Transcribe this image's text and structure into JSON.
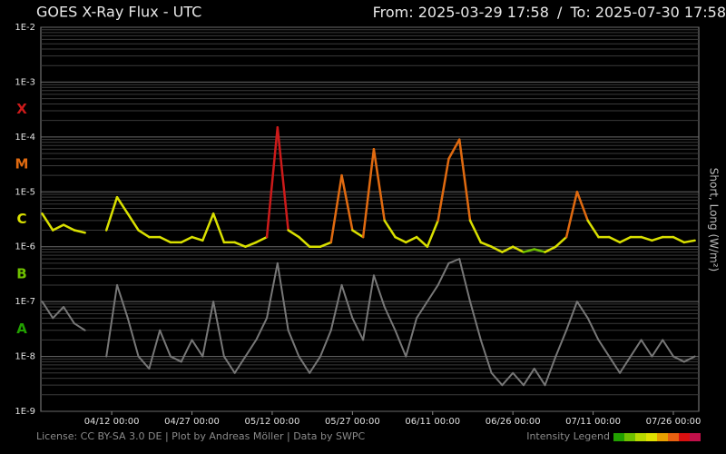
{
  "chart_data": {
    "type": "line",
    "title": "GOES X-Ray Flux - UTC",
    "header": {
      "from_label": "From:",
      "separator": "/",
      "to_label": "To:"
    },
    "ylabel": "Short, Long (W/m²)",
    "footer": "License: CC BY-SA 3.0 DE | Plot by Andreas Möller | Data by SWPC",
    "intensity_legend": {
      "label": "Intensity Legend",
      "colors": [
        "#22a000",
        "#6fc000",
        "#b8d800",
        "#e0e000",
        "#e8a000",
        "#e86010",
        "#d81010",
        "#c0104a"
      ]
    },
    "log_scale": true,
    "grid": true,
    "minor_grid": true,
    "xlim": [
      "2025-03-29 17:58",
      "2025-07-30 17:58"
    ],
    "xticks": [
      {
        "value": "2025-04-12 00:00",
        "label": "04/12 00:00"
      },
      {
        "value": "2025-04-27 00:00",
        "label": "04/27 00:00"
      },
      {
        "value": "2025-05-12 00:00",
        "label": "05/12 00:00"
      },
      {
        "value": "2025-05-27 00:00",
        "label": "05/27 00:00"
      },
      {
        "value": "2025-06-11 00:00",
        "label": "06/11 00:00"
      },
      {
        "value": "2025-06-26 00:00",
        "label": "06/26 00:00"
      },
      {
        "value": "2025-07-11 00:00",
        "label": "07/11 00:00"
      },
      {
        "value": "2025-07-26 00:00",
        "label": "07/26 00:00"
      }
    ],
    "ylim": [
      1e-09,
      0.01
    ],
    "yticks": [
      {
        "value": 1e-09,
        "label": "1E-9"
      },
      {
        "value": 1e-08,
        "label": "1E-8"
      },
      {
        "value": 1e-07,
        "label": "1E-7"
      },
      {
        "value": 1e-06,
        "label": "1E-6"
      },
      {
        "value": 1e-05,
        "label": "1E-5"
      },
      {
        "value": 0.0001,
        "label": "1E-4"
      },
      {
        "value": 0.001,
        "label": "1E-3"
      },
      {
        "value": 0.01,
        "label": "1E-2"
      }
    ],
    "classes": [
      {
        "label": "A",
        "value": 1e-08,
        "color": "#22a000"
      },
      {
        "label": "B",
        "value": 1e-07,
        "color": "#6fc000"
      },
      {
        "label": "C",
        "value": 1e-06,
        "color": "#d9e000"
      },
      {
        "label": "M",
        "value": 1e-05,
        "color": "#e06a10"
      },
      {
        "label": "X",
        "value": 0.0001,
        "color": "#cc1a1a"
      }
    ],
    "x": [
      "2025-03-30 00:00",
      "2025-04-01 00:00",
      "2025-04-03 00:00",
      "2025-04-05 00:00",
      "2025-04-07 00:00",
      "2025-04-09 00:00",
      "2025-04-11 00:00",
      "2025-04-13 00:00",
      "2025-04-15 00:00",
      "2025-04-17 00:00",
      "2025-04-19 00:00",
      "2025-04-21 00:00",
      "2025-04-23 00:00",
      "2025-04-25 00:00",
      "2025-04-27 00:00",
      "2025-04-29 00:00",
      "2025-05-01 00:00",
      "2025-05-03 00:00",
      "2025-05-05 00:00",
      "2025-05-07 00:00",
      "2025-05-09 00:00",
      "2025-05-11 00:00",
      "2025-05-13 00:00",
      "2025-05-15 00:00",
      "2025-05-17 00:00",
      "2025-05-19 00:00",
      "2025-05-21 00:00",
      "2025-05-23 00:00",
      "2025-05-25 00:00",
      "2025-05-27 00:00",
      "2025-05-29 00:00",
      "2025-05-31 00:00",
      "2025-06-02 00:00",
      "2025-06-04 00:00",
      "2025-06-06 00:00",
      "2025-06-08 00:00",
      "2025-06-10 00:00",
      "2025-06-12 00:00",
      "2025-06-14 00:00",
      "2025-06-16 00:00",
      "2025-06-18 00:00",
      "2025-06-20 00:00",
      "2025-06-22 00:00",
      "2025-06-24 00:00",
      "2025-06-26 00:00",
      "2025-06-28 00:00",
      "2025-06-30 00:00",
      "2025-07-02 00:00",
      "2025-07-04 00:00",
      "2025-07-06 00:00",
      "2025-07-08 00:00",
      "2025-07-10 00:00",
      "2025-07-12 00:00",
      "2025-07-14 00:00",
      "2025-07-16 00:00",
      "2025-07-18 00:00",
      "2025-07-20 00:00",
      "2025-07-22 00:00",
      "2025-07-24 00:00",
      "2025-07-26 00:00",
      "2025-07-28 00:00",
      "2025-07-30 00:00"
    ],
    "series": [
      {
        "name": "Short",
        "color": "#777777",
        "values": [
          1e-07,
          5e-08,
          8e-08,
          4e-08,
          3e-08,
          null,
          1e-08,
          2e-07,
          5e-08,
          1e-08,
          6e-09,
          3e-08,
          1e-08,
          8e-09,
          2e-08,
          1e-08,
          1e-07,
          1e-08,
          5e-09,
          1e-08,
          2e-08,
          5e-08,
          5e-07,
          3e-08,
          1e-08,
          5e-09,
          1e-08,
          3e-08,
          2e-07,
          5e-08,
          2e-08,
          3e-07,
          8e-08,
          3e-08,
          1e-08,
          5e-08,
          1e-07,
          2e-07,
          5e-07,
          6e-07,
          1e-07,
          2e-08,
          5e-09,
          3e-09,
          5e-09,
          3e-09,
          6e-09,
          3e-09,
          1e-08,
          3e-08,
          1e-07,
          5e-08,
          2e-08,
          1e-08,
          5e-09,
          1e-08,
          2e-08,
          1e-08,
          2e-08,
          1e-08,
          8e-09,
          1e-08
        ]
      },
      {
        "name": "Long",
        "color_by": "classes",
        "values": [
          4e-06,
          2e-06,
          2.5e-06,
          2e-06,
          1.8e-06,
          null,
          2e-06,
          8e-06,
          4e-06,
          2e-06,
          1.5e-06,
          1.5e-06,
          1.2e-06,
          1.2e-06,
          1.5e-06,
          1.3e-06,
          4e-06,
          1.2e-06,
          1.2e-06,
          1e-06,
          1.2e-06,
          1.5e-06,
          0.00015,
          2e-06,
          1.5e-06,
          1e-06,
          1e-06,
          1.2e-06,
          2e-05,
          2e-06,
          1.5e-06,
          6e-05,
          3e-06,
          1.5e-06,
          1.2e-06,
          1.5e-06,
          1e-06,
          3e-06,
          4e-05,
          9e-05,
          3e-06,
          1.2e-06,
          1e-06,
          8e-07,
          1e-06,
          8e-07,
          9e-07,
          8e-07,
          1e-06,
          1.5e-06,
          1e-05,
          3e-06,
          1.5e-06,
          1.5e-06,
          1.2e-06,
          1.5e-06,
          1.5e-06,
          1.3e-06,
          1.5e-06,
          1.5e-06,
          1.2e-06,
          1.3e-06
        ]
      }
    ]
  }
}
